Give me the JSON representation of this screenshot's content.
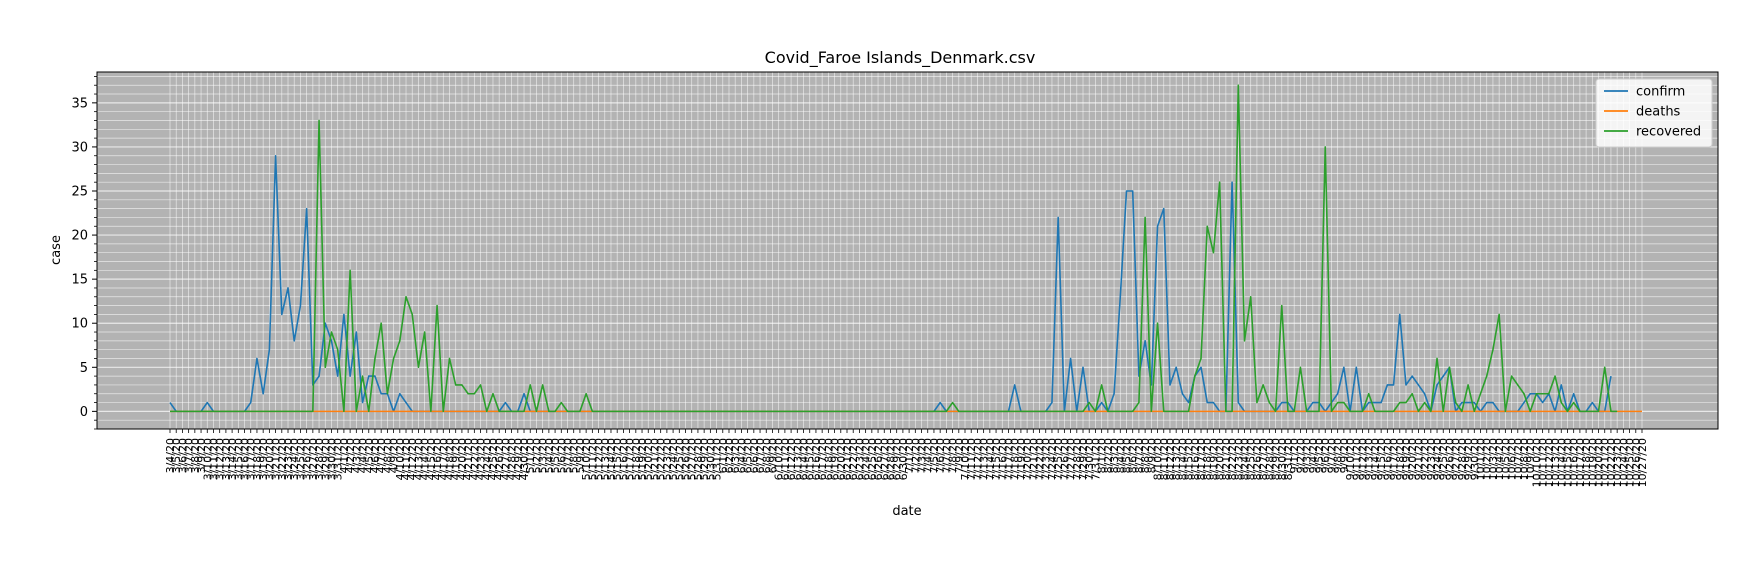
{
  "chart_data": {
    "type": "line",
    "title": "Covid_Faroe Islands_Denmark.csv",
    "xlabel": "date",
    "ylabel": "case",
    "x_start": "3/4/20",
    "x_end": "10/27/20",
    "ylim": [
      -2,
      38.5
    ],
    "yticks": [
      0,
      5,
      10,
      15,
      20,
      25,
      30,
      35
    ],
    "grid": true,
    "legend_position": "top-right",
    "series": [
      {
        "name": "confirm",
        "color": "#1f77b4",
        "points": [
          [
            "3/4/20",
            1
          ],
          [
            "3/5/20",
            0
          ],
          [
            "3/9/20",
            0
          ],
          [
            "3/10/20",
            1
          ],
          [
            "3/11/20",
            0
          ],
          [
            "3/16/20",
            0
          ],
          [
            "3/17/20",
            1
          ],
          [
            "3/18/20",
            6
          ],
          [
            "3/19/20",
            2
          ],
          [
            "3/20/20",
            7
          ],
          [
            "3/21/20",
            29
          ],
          [
            "3/22/20",
            11
          ],
          [
            "3/23/20",
            14
          ],
          [
            "3/24/20",
            8
          ],
          [
            "3/25/20",
            12
          ],
          [
            "3/26/20",
            23
          ],
          [
            "3/27/20",
            3
          ],
          [
            "3/28/20",
            4
          ],
          [
            "3/29/20",
            10
          ],
          [
            "3/30/20",
            8
          ],
          [
            "3/31/20",
            4
          ],
          [
            "4/1/20",
            11
          ],
          [
            "4/2/20",
            4
          ],
          [
            "4/3/20",
            9
          ],
          [
            "4/4/20",
            1
          ],
          [
            "4/5/20",
            4
          ],
          [
            "4/6/20",
            4
          ],
          [
            "4/7/20",
            2
          ],
          [
            "4/8/20",
            2
          ],
          [
            "4/9/20",
            0
          ],
          [
            "4/10/20",
            2
          ],
          [
            "4/11/20",
            1
          ],
          [
            "4/12/20",
            0
          ],
          [
            "4/26/20",
            0
          ],
          [
            "4/27/20",
            1
          ],
          [
            "4/28/20",
            0
          ],
          [
            "4/29/20",
            0
          ],
          [
            "4/30/20",
            2
          ],
          [
            "5/1/20",
            0
          ],
          [
            "7/5/20",
            0
          ],
          [
            "7/6/20",
            1
          ],
          [
            "7/7/20",
            0
          ],
          [
            "7/17/20",
            0
          ],
          [
            "7/18/20",
            3
          ],
          [
            "7/19/20",
            0
          ],
          [
            "7/23/20",
            0
          ],
          [
            "7/24/20",
            1
          ],
          [
            "7/25/20",
            22
          ],
          [
            "7/26/20",
            0
          ],
          [
            "7/27/20",
            6
          ],
          [
            "7/28/20",
            0
          ],
          [
            "7/29/20",
            5
          ],
          [
            "7/30/20",
            0
          ],
          [
            "7/31/20",
            0
          ],
          [
            "8/1/20",
            1
          ],
          [
            "8/2/20",
            0
          ],
          [
            "8/3/20",
            2
          ],
          [
            "8/4/20",
            13
          ],
          [
            "8/5/20",
            25
          ],
          [
            "8/6/20",
            25
          ],
          [
            "8/7/20",
            4
          ],
          [
            "8/8/20",
            8
          ],
          [
            "8/9/20",
            3
          ],
          [
            "8/10/20",
            21
          ],
          [
            "8/11/20",
            23
          ],
          [
            "8/12/20",
            3
          ],
          [
            "8/13/20",
            5
          ],
          [
            "8/14/20",
            2
          ],
          [
            "8/15/20",
            1
          ],
          [
            "8/16/20",
            4
          ],
          [
            "8/17/20",
            5
          ],
          [
            "8/18/20",
            1
          ],
          [
            "8/19/20",
            1
          ],
          [
            "8/20/20",
            0
          ],
          [
            "8/21/20",
            0
          ],
          [
            "8/22/20",
            26
          ],
          [
            "8/23/20",
            1
          ],
          [
            "8/24/20",
            0
          ],
          [
            "8/25/20",
            0
          ],
          [
            "8/29/20",
            0
          ],
          [
            "8/30/20",
            1
          ],
          [
            "8/31/20",
            1
          ],
          [
            "9/1/20",
            0
          ],
          [
            "9/2/20",
            0
          ],
          [
            "9/3/20",
            0
          ],
          [
            "9/4/20",
            1
          ],
          [
            "9/5/20",
            1
          ],
          [
            "9/6/20",
            0
          ],
          [
            "9/7/20",
            1
          ],
          [
            "9/8/20",
            2
          ],
          [
            "9/9/20",
            5
          ],
          [
            "9/10/20",
            0
          ],
          [
            "9/11/20",
            5
          ],
          [
            "9/12/20",
            0
          ],
          [
            "9/13/20",
            1
          ],
          [
            "9/14/20",
            1
          ],
          [
            "9/15/20",
            1
          ],
          [
            "9/16/20",
            3
          ],
          [
            "9/17/20",
            3
          ],
          [
            "9/18/20",
            11
          ],
          [
            "9/19/20",
            3
          ],
          [
            "9/20/20",
            4
          ],
          [
            "9/21/20",
            3
          ],
          [
            "9/22/20",
            2
          ],
          [
            "9/23/20",
            0
          ],
          [
            "9/24/20",
            3
          ],
          [
            "9/25/20",
            4
          ],
          [
            "9/26/20",
            5
          ],
          [
            "9/27/20",
            0
          ],
          [
            "9/28/20",
            1
          ],
          [
            "9/29/20",
            1
          ],
          [
            "9/30/20",
            1
          ],
          [
            "10/1/20",
            0
          ],
          [
            "10/2/20",
            1
          ],
          [
            "10/3/20",
            1
          ],
          [
            "10/4/20",
            0
          ],
          [
            "10/7/20",
            0
          ],
          [
            "10/8/20",
            1
          ],
          [
            "10/9/20",
            2
          ],
          [
            "10/10/20",
            2
          ],
          [
            "10/11/20",
            1
          ],
          [
            "10/12/20",
            2
          ],
          [
            "10/13/20",
            0
          ],
          [
            "10/14/20",
            3
          ],
          [
            "10/15/20",
            0
          ],
          [
            "10/16/20",
            2
          ],
          [
            "10/17/20",
            0
          ],
          [
            "10/18/20",
            0
          ],
          [
            "10/19/20",
            1
          ],
          [
            "10/20/20",
            0
          ],
          [
            "10/21/20",
            0
          ],
          [
            "10/22/20",
            4
          ]
        ]
      },
      {
        "name": "deaths",
        "color": "#ff7f0e",
        "points": [
          [
            "3/4/20",
            0
          ],
          [
            "10/27/20",
            0
          ]
        ]
      },
      {
        "name": "recovered",
        "color": "#2ca02c",
        "points": [
          [
            "3/4/20",
            0
          ],
          [
            "3/27/20",
            0
          ],
          [
            "3/28/20",
            33
          ],
          [
            "3/29/20",
            5
          ],
          [
            "3/30/20",
            9
          ],
          [
            "3/31/20",
            7
          ],
          [
            "4/1/20",
            0
          ],
          [
            "4/2/20",
            16
          ],
          [
            "4/3/20",
            0
          ],
          [
            "4/4/20",
            4
          ],
          [
            "4/5/20",
            0
          ],
          [
            "4/6/20",
            6
          ],
          [
            "4/7/20",
            10
          ],
          [
            "4/8/20",
            2
          ],
          [
            "4/9/20",
            6
          ],
          [
            "4/10/20",
            8
          ],
          [
            "4/11/20",
            13
          ],
          [
            "4/12/20",
            11
          ],
          [
            "4/13/20",
            5
          ],
          [
            "4/14/20",
            9
          ],
          [
            "4/15/20",
            0
          ],
          [
            "4/16/20",
            12
          ],
          [
            "4/17/20",
            0
          ],
          [
            "4/18/20",
            6
          ],
          [
            "4/19/20",
            3
          ],
          [
            "4/20/20",
            3
          ],
          [
            "4/21/20",
            2
          ],
          [
            "4/22/20",
            2
          ],
          [
            "4/23/20",
            3
          ],
          [
            "4/24/20",
            0
          ],
          [
            "4/25/20",
            2
          ],
          [
            "4/26/20",
            0
          ],
          [
            "4/27/20",
            0
          ],
          [
            "4/28/20",
            0
          ],
          [
            "4/29/20",
            0
          ],
          [
            "4/30/20",
            0
          ],
          [
            "5/1/20",
            3
          ],
          [
            "5/2/20",
            0
          ],
          [
            "5/3/20",
            3
          ],
          [
            "5/4/20",
            0
          ],
          [
            "5/5/20",
            0
          ],
          [
            "5/6/20",
            1
          ],
          [
            "5/7/20",
            0
          ],
          [
            "5/8/20",
            0
          ],
          [
            "5/9/20",
            0
          ],
          [
            "5/10/20",
            2
          ],
          [
            "5/11/20",
            0
          ],
          [
            "7/6/20",
            0
          ],
          [
            "7/7/20",
            0
          ],
          [
            "7/8/20",
            1
          ],
          [
            "7/9/20",
            0
          ],
          [
            "7/27/20",
            0
          ],
          [
            "7/28/20",
            0
          ],
          [
            "7/29/20",
            0
          ],
          [
            "7/30/20",
            1
          ],
          [
            "7/31/20",
            0
          ],
          [
            "8/1/20",
            3
          ],
          [
            "8/2/20",
            0
          ],
          [
            "8/6/20",
            0
          ],
          [
            "8/7/20",
            1
          ],
          [
            "8/8/20",
            22
          ],
          [
            "8/9/20",
            0
          ],
          [
            "8/10/20",
            10
          ],
          [
            "8/11/20",
            0
          ],
          [
            "8/15/20",
            0
          ],
          [
            "8/16/20",
            4
          ],
          [
            "8/17/20",
            6
          ],
          [
            "8/18/20",
            21
          ],
          [
            "8/19/20",
            18
          ],
          [
            "8/20/20",
            26
          ],
          [
            "8/21/20",
            0
          ],
          [
            "8/22/20",
            0
          ],
          [
            "8/23/20",
            37
          ],
          [
            "8/24/20",
            8
          ],
          [
            "8/25/20",
            13
          ],
          [
            "8/26/20",
            1
          ],
          [
            "8/27/20",
            3
          ],
          [
            "8/28/20",
            1
          ],
          [
            "8/29/20",
            0
          ],
          [
            "8/30/20",
            12
          ],
          [
            "8/31/20",
            0
          ],
          [
            "9/1/20",
            0
          ],
          [
            "9/2/20",
            5
          ],
          [
            "9/3/20",
            0
          ],
          [
            "9/4/20",
            0
          ],
          [
            "9/5/20",
            0
          ],
          [
            "9/6/20",
            30
          ],
          [
            "9/7/20",
            0
          ],
          [
            "9/8/20",
            1
          ],
          [
            "9/9/20",
            1
          ],
          [
            "9/10/20",
            0
          ],
          [
            "9/11/20",
            0
          ],
          [
            "9/12/20",
            0
          ],
          [
            "9/13/20",
            2
          ],
          [
            "9/14/20",
            0
          ],
          [
            "9/15/20",
            0
          ],
          [
            "9/16/20",
            0
          ],
          [
            "9/17/20",
            0
          ],
          [
            "9/18/20",
            1
          ],
          [
            "9/19/20",
            1
          ],
          [
            "9/20/20",
            2
          ],
          [
            "9/21/20",
            0
          ],
          [
            "9/22/20",
            1
          ],
          [
            "9/23/20",
            0
          ],
          [
            "9/24/20",
            6
          ],
          [
            "9/25/20",
            0
          ],
          [
            "9/26/20",
            5
          ],
          [
            "9/27/20",
            1
          ],
          [
            "9/28/20",
            0
          ],
          [
            "9/29/20",
            3
          ],
          [
            "9/30/20",
            0
          ],
          [
            "10/1/20",
            2
          ],
          [
            "10/2/20",
            4
          ],
          [
            "10/3/20",
            7
          ],
          [
            "10/4/20",
            11
          ],
          [
            "10/5/20",
            0
          ],
          [
            "10/6/20",
            4
          ],
          [
            "10/7/20",
            3
          ],
          [
            "10/8/20",
            2
          ],
          [
            "10/9/20",
            0
          ],
          [
            "10/10/20",
            2
          ],
          [
            "10/11/20",
            2
          ],
          [
            "10/12/20",
            2
          ],
          [
            "10/13/20",
            4
          ],
          [
            "10/14/20",
            1
          ],
          [
            "10/15/20",
            0
          ],
          [
            "10/16/20",
            1
          ],
          [
            "10/17/20",
            0
          ],
          [
            "10/18/20",
            0
          ],
          [
            "10/19/20",
            0
          ],
          [
            "10/20/20",
            0
          ],
          [
            "10/21/20",
            5
          ],
          [
            "10/22/20",
            0
          ],
          [
            "10/23/20",
            0
          ]
        ]
      }
    ]
  }
}
